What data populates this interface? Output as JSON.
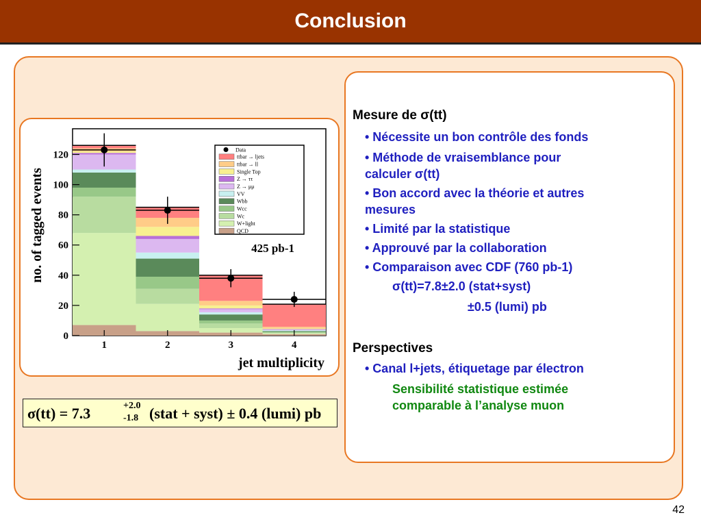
{
  "slide": {
    "title": "Conclusion",
    "page_number": "42"
  },
  "formula": {
    "main": "σ(tt) = 7.3",
    "sup": "+2.0",
    "sub": "-1.8",
    "rest": "(stat + syst) ± 0.4 (lumi) pb"
  },
  "text_panel": {
    "lines": [
      {
        "text": "Mesure de σ(tt)",
        "style": "h",
        "indent": 0
      },
      {
        "text": "• Nécessite un bon contrôle des fonds",
        "style": "b",
        "indent": 1
      },
      {
        "text": "• Méthode de vraisemblance pour",
        "style": "b",
        "indent": 1
      },
      {
        "text": "calculer σ(tt)",
        "style": "b",
        "indent": 1
      },
      {
        "text": "• Bon accord avec la théorie et autres",
        "style": "b",
        "indent": 1
      },
      {
        "text": "mesures",
        "style": "b",
        "indent": 1
      },
      {
        "text": "• Limité par la statistique",
        "style": "b",
        "indent": 1
      },
      {
        "text": "• Approuvé par la collaboration",
        "style": "b",
        "indent": 1
      },
      {
        "text": "• Comparaison avec CDF (760 pb-1)",
        "style": "b",
        "indent": 1
      },
      {
        "text": "σ(tt)=7.8±2.0 (stat+syst)",
        "style": "b",
        "indent": 2
      },
      {
        "text": "±0.5 (lumi)        pb",
        "style": "b",
        "indent": 3
      },
      {
        "text": "Perspectives",
        "style": "h",
        "indent": 0
      },
      {
        "text": "• Canal l+jets, étiquetage par électron",
        "style": "b",
        "indent": 1
      },
      {
        "text": "Sensibilité statistique estimée",
        "style": "g",
        "indent": 2
      },
      {
        "text": "comparable à l’analyse muon",
        "style": "g",
        "indent": 2
      }
    ]
  },
  "chart_data": {
    "type": "bar",
    "stacked": true,
    "xlabel": "jet multiplicity",
    "ylabel": "no. of tagged events",
    "annotation": "425 pb-1",
    "categories": [
      "1",
      "2",
      "3",
      "4"
    ],
    "x_ticks": [
      "1",
      "2",
      "3",
      "4"
    ],
    "y_ticks": [
      "0",
      "20",
      "40",
      "60",
      "80",
      "100",
      "120"
    ],
    "ylim": [
      0,
      137
    ],
    "legend_position": "top-right",
    "series": [
      {
        "name": "QCD",
        "color": "#c8a088",
        "values": [
          7,
          3,
          2,
          1
        ]
      },
      {
        "name": "W+light",
        "color": "#d4f0b0",
        "values": [
          61,
          18,
          3,
          0.5
        ]
      },
      {
        "name": "Wc",
        "color": "#b8dca0",
        "values": [
          24,
          10,
          3,
          0.5
        ]
      },
      {
        "name": "Wcc",
        "color": "#98c888",
        "values": [
          6,
          8,
          2,
          0.5
        ]
      },
      {
        "name": "Wbb",
        "color": "#5a8a5a",
        "values": [
          10,
          12,
          4,
          0.5
        ]
      },
      {
        "name": "VV",
        "color": "#c8f0f0",
        "values": [
          2,
          4,
          1.5,
          0.5
        ]
      },
      {
        "name": "Z → μμ",
        "color": "#dcb8f0",
        "values": [
          10,
          9,
          2,
          0.5
        ]
      },
      {
        "name": "Z → ττ",
        "color": "#b870d8",
        "values": [
          1,
          2,
          0.5,
          0.3
        ]
      },
      {
        "name": "Single Top",
        "color": "#f8f090",
        "values": [
          1,
          6,
          2,
          0.5
        ]
      },
      {
        "name": "ttbar → ll",
        "color": "#ffcc88",
        "values": [
          2,
          6,
          3,
          1
        ]
      },
      {
        "name": "ttbar → ljets",
        "color": "#ff8080",
        "values": [
          2,
          7,
          17,
          15
        ]
      }
    ],
    "data_points": {
      "name": "Data",
      "values": [
        123,
        83,
        38,
        24
      ],
      "errors": [
        11,
        9,
        6,
        5
      ]
    }
  }
}
